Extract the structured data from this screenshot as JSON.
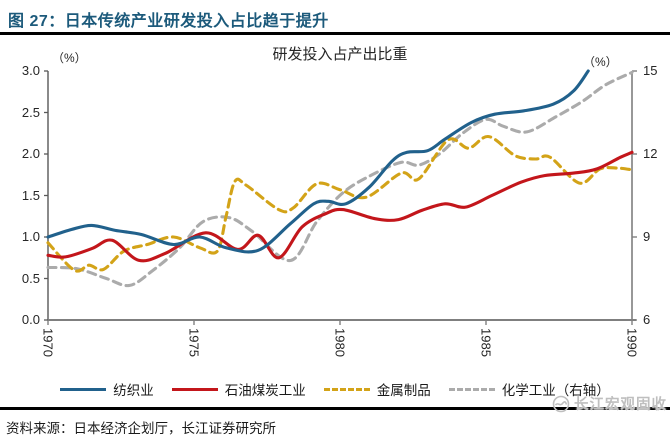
{
  "header": {
    "title": "图 27：日本传统产业研发投入占比趋于提升"
  },
  "chart": {
    "title": "研发投入占产出比重",
    "left_axis_unit": "（%）",
    "right_axis_unit": "（%）",
    "left_ticks": [
      "3.0",
      "2.5",
      "2.0",
      "1.5",
      "1.0",
      "0.5",
      "0.0"
    ],
    "right_ticks": [
      "15",
      "12",
      "9",
      "6"
    ],
    "x_ticks": [
      "1970",
      "1975",
      "1980",
      "1985",
      "1990"
    ]
  },
  "chart_data": {
    "type": "line",
    "title": "研发投入占产出比重",
    "xlim": [
      1970,
      1990
    ],
    "left_ylim": [
      0,
      3
    ],
    "right_ylim": [
      6,
      15
    ],
    "grid": false,
    "legend_position": "bottom",
    "series": [
      {
        "name": "纺织业",
        "axis": "left",
        "color": "#21618C",
        "dashed": false,
        "x": [
          1970,
          1970.8,
          1971.5,
          1972.3,
          1973.2,
          1974.3,
          1975.2,
          1976.1,
          1977.2,
          1978.3,
          1979.1,
          1979.6,
          1980.2,
          1981,
          1981.8,
          1982.3,
          1983,
          1983.6,
          1984.5,
          1985.3,
          1986.3,
          1987.3,
          1988,
          1988.5
        ],
        "values": [
          1.0,
          1.09,
          1.14,
          1.08,
          1.03,
          0.91,
          1.0,
          0.87,
          0.84,
          1.16,
          1.4,
          1.43,
          1.4,
          1.6,
          1.92,
          2.02,
          2.04,
          2.18,
          2.38,
          2.48,
          2.52,
          2.6,
          2.76,
          3.0
        ]
      },
      {
        "name": "石油煤炭工业",
        "axis": "left",
        "color": "#C3161B",
        "dashed": false,
        "x": [
          1970,
          1970.6,
          1971.5,
          1972.2,
          1973.1,
          1974,
          1975.4,
          1976.5,
          1977.2,
          1977.9,
          1978.7,
          1979.5,
          1980.1,
          1981.2,
          1982,
          1982.8,
          1983.6,
          1984.3,
          1985.2,
          1986.2,
          1987,
          1988,
          1988.8,
          1989.6,
          1990
        ],
        "values": [
          0.78,
          0.76,
          0.86,
          0.96,
          0.72,
          0.8,
          1.05,
          0.85,
          1.02,
          0.75,
          1.12,
          1.28,
          1.33,
          1.22,
          1.21,
          1.32,
          1.4,
          1.36,
          1.5,
          1.66,
          1.74,
          1.77,
          1.82,
          1.96,
          2.02
        ]
      },
      {
        "name": "金属制品",
        "axis": "left",
        "color": "#D3A318",
        "dashed": true,
        "x": [
          1970,
          1970.9,
          1971.4,
          1971.9,
          1972.6,
          1973.4,
          1974.3,
          1975.2,
          1975.8,
          1976.1,
          1976.4,
          1976.8,
          1977.9,
          1978.4,
          1979.2,
          1980,
          1980.9,
          1982.1,
          1982.7,
          1983.7,
          1984.4,
          1985.1,
          1986,
          1986.7,
          1987.2,
          1988.2,
          1988.9,
          1989.5,
          1990
        ],
        "values": [
          0.93,
          0.6,
          0.66,
          0.61,
          0.83,
          0.91,
          1.0,
          0.87,
          0.83,
          1.25,
          1.67,
          1.62,
          1.33,
          1.35,
          1.64,
          1.57,
          1.48,
          1.77,
          1.7,
          2.17,
          2.07,
          2.21,
          1.98,
          1.94,
          1.96,
          1.65,
          1.82,
          1.83,
          1.81
        ]
      },
      {
        "name": "化学工业（右轴）",
        "axis": "right",
        "color": "#ABABAB",
        "dashed": true,
        "x": [
          1970,
          1971,
          1972,
          1972.8,
          1973.6,
          1974.5,
          1975.3,
          1976.2,
          1977,
          1978.3,
          1979.2,
          1980.1,
          1981.1,
          1982.1,
          1982.7,
          1983.4,
          1984.2,
          1985,
          1985.6,
          1986.4,
          1987.4,
          1988.3,
          1989.1,
          1990
        ],
        "values": [
          7.9,
          7.85,
          7.5,
          7.25,
          7.8,
          8.6,
          9.55,
          9.7,
          9.2,
          8.15,
          9.55,
          10.6,
          11.25,
          11.7,
          11.6,
          12.0,
          12.75,
          13.25,
          13.0,
          12.8,
          13.35,
          13.9,
          14.5,
          14.95
        ]
      }
    ]
  },
  "legend": {
    "items": [
      {
        "label": "纺织业",
        "color": "#21618C",
        "dashed": false
      },
      {
        "label": "石油煤炭工业",
        "color": "#C3161B",
        "dashed": false
      },
      {
        "label": "金属制品",
        "color": "#D3A318",
        "dashed": true
      },
      {
        "label": "化学工业（右轴）",
        "color": "#ABABAB",
        "dashed": true
      }
    ]
  },
  "footer": {
    "source": "资料来源：日本经济企划厅，长江证券研究所",
    "watermark": "长江宏观固收"
  },
  "colors": {
    "title": "#1C5A7B",
    "axis": "#7F7F7F",
    "left_axis": "#595959",
    "text": "#262626",
    "watermark": "#BFBFBF"
  }
}
